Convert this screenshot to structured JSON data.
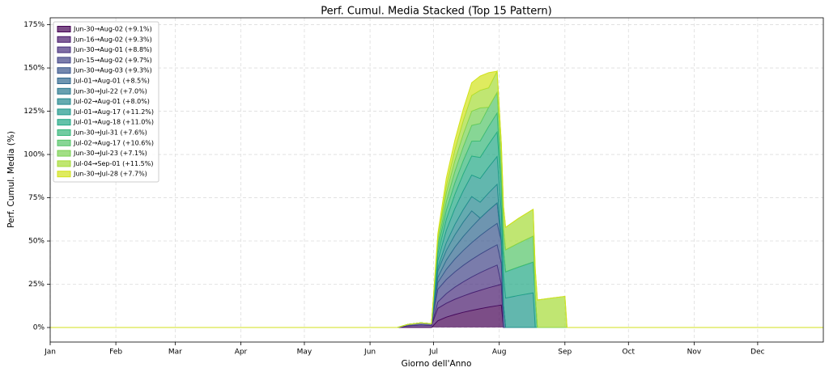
{
  "chart_data": {
    "type": "stacked-area",
    "title": "Perf. Cumul. Media Stacked (Top 15 Pattern)",
    "xlabel": "Giorno dell'Anno",
    "ylabel": "Perf. Cumul. Media (%)",
    "grid": true,
    "legend": "upper left",
    "xlim": [
      1,
      366
    ],
    "ylim": [
      -8.4,
      179
    ],
    "xticks": [
      {
        "value": 1,
        "label": "Jan"
      },
      {
        "value": 32,
        "label": "Feb"
      },
      {
        "value": 60,
        "label": "Mar"
      },
      {
        "value": 91,
        "label": "Apr"
      },
      {
        "value": 121,
        "label": "May"
      },
      {
        "value": 152,
        "label": "Jun"
      },
      {
        "value": 182,
        "label": "Jul"
      },
      {
        "value": 213,
        "label": "Aug"
      },
      {
        "value": 244,
        "label": "Sep"
      },
      {
        "value": 274,
        "label": "Oct"
      },
      {
        "value": 305,
        "label": "Nov"
      },
      {
        "value": 335,
        "label": "Dec"
      }
    ],
    "yticks": [
      {
        "value": 0,
        "label": "0%"
      },
      {
        "value": 25,
        "label": "25%"
      },
      {
        "value": 50,
        "label": "50%"
      },
      {
        "value": 75,
        "label": "75%"
      },
      {
        "value": 100,
        "label": "100%"
      },
      {
        "value": 125,
        "label": "125%"
      },
      {
        "value": 150,
        "label": "150%"
      },
      {
        "value": 175,
        "label": "175%"
      }
    ],
    "x": [
      1,
      165,
      170,
      176,
      181,
      184,
      188,
      192,
      196,
      200,
      204,
      208,
      212,
      214,
      215,
      216,
      222,
      229,
      230,
      231,
      238,
      244,
      245,
      366
    ],
    "series": [
      {
        "name": "Jun-30→Aug-02 (+9.1%)",
        "color": "#440154",
        "values": [
          0,
          0,
          0,
          0,
          0,
          3.9,
          6.0,
          7.5,
          8.8,
          9.9,
          10.9,
          11.8,
          12.6,
          13.0,
          0,
          0,
          0,
          0,
          0,
          0,
          0,
          0,
          0,
          0
        ]
      },
      {
        "name": "Jun-16→Aug-02 (+9.3%)",
        "color": "#481a6c",
        "values": [
          0,
          0,
          1.0,
          1.5,
          1.2,
          7.2,
          8.0,
          8.8,
          9.4,
          10.1,
          10.6,
          11.2,
          11.7,
          12.0,
          0,
          0,
          0,
          0,
          0,
          0,
          0,
          0,
          0,
          0
        ]
      },
      {
        "name": "Jun-30→Aug-01 (+8.8%)",
        "color": "#472f7d",
        "values": [
          0,
          0,
          0,
          0,
          0,
          3.7,
          5.6,
          7.0,
          8.2,
          9.2,
          10.2,
          11.0,
          11.8,
          0,
          0,
          0,
          0,
          0,
          0,
          0,
          0,
          0,
          0,
          0
        ]
      },
      {
        "name": "Jun-15→Aug-02 (+9.7%)",
        "color": "#414487",
        "values": [
          0,
          0,
          0.8,
          1.2,
          1.0,
          7.3,
          8.1,
          8.8,
          9.5,
          10.1,
          10.7,
          11.2,
          11.7,
          12.0,
          0,
          0,
          0,
          0,
          0,
          0,
          0,
          0,
          0,
          0
        ]
      },
      {
        "name": "Jun-30→Aug-03 (+9.3%)",
        "color": "#39568c",
        "values": [
          0,
          0,
          0,
          0,
          0,
          3.9,
          5.9,
          7.4,
          8.6,
          9.7,
          10.7,
          11.6,
          12.4,
          12.8,
          13.0,
          0,
          0,
          0,
          0,
          0,
          0,
          0,
          0,
          0
        ]
      },
      {
        "name": "Jul-01→Aug-01 (+8.5%)",
        "color": "#31688e",
        "values": [
          0,
          0,
          0,
          0,
          0,
          3.0,
          5.3,
          6.8,
          8.1,
          9.1,
          10.1,
          11.0,
          11.8,
          0,
          0,
          0,
          0,
          0,
          0,
          0,
          0,
          0,
          0,
          0
        ]
      },
      {
        "name": "Jun-30→Jul-22 (+7.0%)",
        "color": "#2a788e",
        "values": [
          0,
          0,
          0,
          0,
          0,
          3.7,
          5.6,
          7.1,
          8.3,
          9.3,
          0,
          0,
          0,
          0,
          0,
          0,
          0,
          0,
          0,
          0,
          0,
          0,
          0,
          0
        ]
      },
      {
        "name": "Jul-02→Aug-01 (+8.0%)",
        "color": "#23888e",
        "values": [
          0,
          0,
          0,
          0,
          0,
          2.0,
          4.5,
          6.0,
          7.2,
          8.3,
          9.2,
          10.0,
          10.8,
          0,
          0,
          0,
          0,
          0,
          0,
          0,
          0,
          0,
          0,
          0
        ]
      },
      {
        "name": "Jul-01→Aug-17 (+11.2%)",
        "color": "#1f988b",
        "values": [
          0,
          0,
          0,
          0,
          0,
          4.1,
          7.1,
          9.2,
          10.9,
          12.4,
          13.7,
          14.9,
          16.0,
          16.5,
          16.8,
          17.0,
          18.5,
          20.0,
          0,
          0,
          0,
          0,
          0,
          0
        ]
      },
      {
        "name": "Jul-01→Aug-18 (+11.0%)",
        "color": "#22a884",
        "values": [
          0,
          0,
          0,
          0,
          0,
          3.7,
          6.4,
          8.2,
          9.7,
          11.0,
          12.2,
          13.2,
          14.2,
          14.7,
          14.9,
          15.2,
          16.4,
          17.8,
          18.0,
          0,
          0,
          0,
          0,
          0
        ]
      },
      {
        "name": "Jun-30→Jul-31 (+7.6%)",
        "color": "#35b779",
        "values": [
          0,
          0,
          0,
          0,
          0,
          3.4,
          5.2,
          6.6,
          7.7,
          8.6,
          9.5,
          10.3,
          11.0,
          0,
          0,
          0,
          0,
          0,
          0,
          0,
          0,
          0,
          0,
          0
        ]
      },
      {
        "name": "Jul-02→Aug-17 (+10.6%)",
        "color": "#54c568",
        "values": [
          0,
          0,
          0,
          0,
          0,
          2.2,
          5.0,
          6.6,
          8.0,
          9.1,
          10.1,
          11.1,
          11.9,
          12.3,
          12.5,
          12.7,
          13.8,
          15.0,
          0,
          0,
          0,
          0,
          0,
          0
        ]
      },
      {
        "name": "Jun-30→Jul-23 (+7.1%)",
        "color": "#7ad151",
        "values": [
          0,
          0,
          0,
          0,
          0,
          3.2,
          5.0,
          6.2,
          7.3,
          8.2,
          9.0,
          0,
          0,
          0,
          0,
          0,
          0,
          0,
          0,
          0,
          0,
          0,
          0,
          0
        ]
      },
      {
        "name": "Jul-04→Sep-01 (+11.5%)",
        "color": "#a5db36",
        "values": [
          0,
          0,
          0,
          0,
          0,
          0,
          4.1,
          6.2,
          7.8,
          9.1,
          10.2,
          11.2,
          12.2,
          12.6,
          12.8,
          13.0,
          14.3,
          15.5,
          15.7,
          15.9,
          17.1,
          18.0,
          0,
          0
        ]
      },
      {
        "name": "Jun-30→Jul-28 (+7.7%)",
        "color": "#d2e21b",
        "values": [
          0,
          0,
          0,
          0,
          0,
          2.9,
          4.5,
          5.6,
          6.6,
          7.4,
          8.2,
          8.8,
          0,
          0,
          0,
          0,
          0,
          0,
          0,
          0,
          0,
          0,
          0,
          0
        ]
      }
    ]
  }
}
